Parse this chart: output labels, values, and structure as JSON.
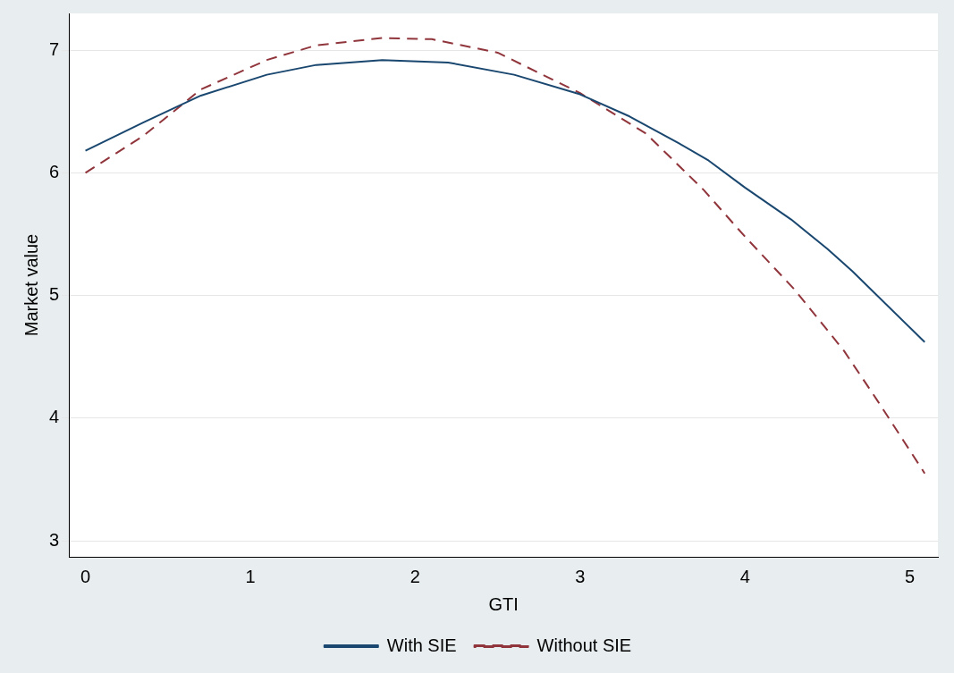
{
  "chart_data": {
    "type": "line",
    "xlabel": "GTI",
    "ylabel": "Market value",
    "xlim": [
      -0.1,
      5.17
    ],
    "ylim": [
      2.87,
      7.3
    ],
    "xticks": [
      0,
      1,
      2,
      3,
      4,
      5
    ],
    "yticks": [
      3,
      4,
      5,
      6,
      7
    ],
    "grid": "y",
    "legend": "bottom",
    "marker": "none",
    "series": [
      {
        "name": "With SIE",
        "color": "#1a476f",
        "line_style": "solid",
        "x": [
          0,
          0.35,
          0.7,
          1.1,
          1.4,
          1.8,
          2.2,
          2.6,
          3.0,
          3.3,
          3.6,
          3.78,
          4.0,
          4.28,
          4.5,
          4.65,
          5.09
        ],
        "values": [
          6.18,
          6.41,
          6.63,
          6.8,
          6.88,
          6.92,
          6.9,
          6.8,
          6.64,
          6.46,
          6.24,
          6.1,
          5.88,
          5.62,
          5.38,
          5.2,
          4.62
        ]
      },
      {
        "name": "Without SIE",
        "color": "#90353b",
        "line_style": "dashed",
        "x": [
          0,
          0.35,
          0.7,
          1.1,
          1.4,
          1.8,
          2.1,
          2.5,
          3.0,
          3.4,
          3.75,
          4.0,
          4.3,
          4.6,
          4.8,
          5.09
        ],
        "values": [
          6.0,
          6.3,
          6.68,
          6.92,
          7.04,
          7.1,
          7.09,
          6.98,
          6.65,
          6.32,
          5.86,
          5.48,
          5.05,
          4.55,
          4.15,
          3.55
        ]
      }
    ]
  }
}
